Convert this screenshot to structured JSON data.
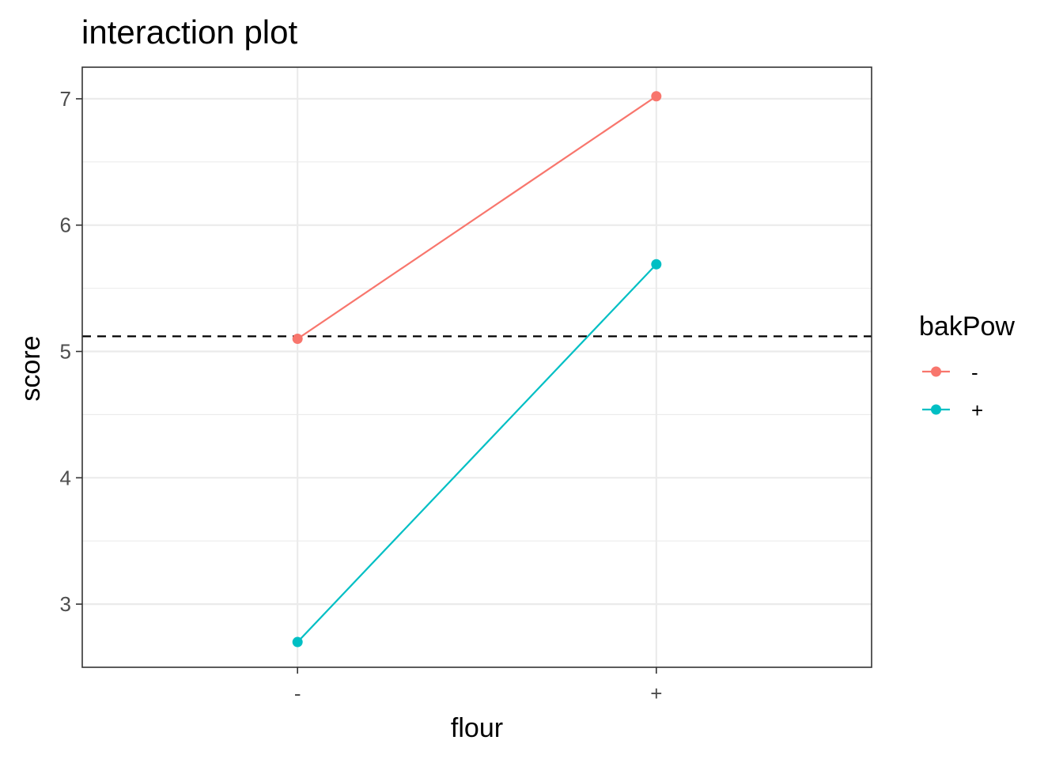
{
  "chart_data": {
    "type": "line",
    "title": "interaction plot",
    "xlabel": "flour",
    "ylabel": "score",
    "categories": [
      "-",
      "+"
    ],
    "ylim": [
      2.5,
      7.25
    ],
    "yticks": [
      3,
      4,
      5,
      6,
      7
    ],
    "grid": true,
    "reference_line": {
      "y": 5.12,
      "style": "dashed",
      "color": "#000000"
    },
    "legend": {
      "title": "bakPow",
      "position": "right"
    },
    "series": [
      {
        "name": "-",
        "color": "#F8766D",
        "values": [
          5.1,
          7.02
        ]
      },
      {
        "name": "+",
        "color": "#00BFC4",
        "values": [
          2.7,
          5.69
        ]
      }
    ]
  }
}
